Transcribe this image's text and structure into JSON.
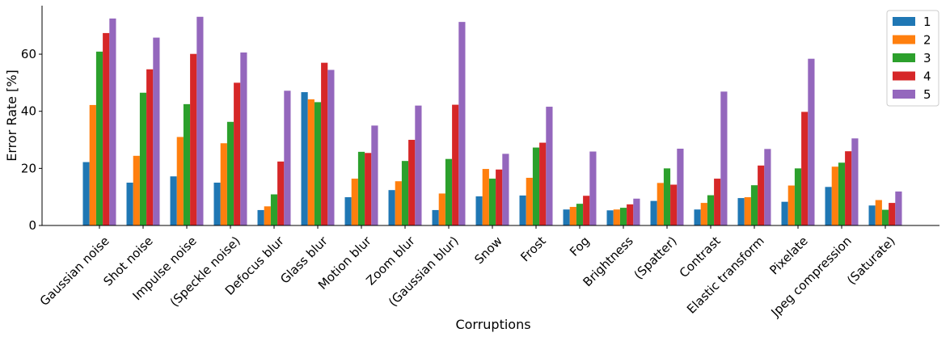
{
  "chart_data": {
    "type": "bar",
    "title": "",
    "xlabel": "Corruptions",
    "ylabel": "Error Rate [%]",
    "ylim": [
      0,
      77
    ],
    "yticks": [
      0,
      20,
      40,
      60
    ],
    "grid": false,
    "legend_position": "top-right",
    "categories": [
      "Gaussian noise",
      "Shot noise",
      "Impulse noise",
      "(Speckle noise)",
      "Defocus blur",
      "Glass blur",
      "Motion blur",
      "Zoom blur",
      "(Gaussian blur)",
      "Snow",
      "Frost",
      "Fog",
      "Brightness",
      "(Spatter)",
      "Contrast",
      "Elastic transform",
      "Pixelate",
      "Jpeg compression",
      "(Saturate)"
    ],
    "series": [
      {
        "name": "1",
        "color": "#1f77b4",
        "values": [
          22.2,
          15.0,
          17.2,
          15.0,
          5.4,
          46.7,
          9.9,
          12.4,
          5.4,
          10.2,
          10.5,
          5.6,
          5.3,
          8.6,
          5.6,
          9.6,
          8.3,
          13.5,
          7.0
        ]
      },
      {
        "name": "2",
        "color": "#ff7f0e",
        "values": [
          42.2,
          24.4,
          31.0,
          28.8,
          6.7,
          44.2,
          16.4,
          15.5,
          11.2,
          19.8,
          16.7,
          6.5,
          5.6,
          14.9,
          7.9,
          9.9,
          14.0,
          20.6,
          8.9
        ]
      },
      {
        "name": "3",
        "color": "#2ca02c",
        "values": [
          60.9,
          46.5,
          42.5,
          36.3,
          10.9,
          43.2,
          25.8,
          22.6,
          23.3,
          16.4,
          27.3,
          7.6,
          6.2,
          20.0,
          10.6,
          14.1,
          20.0,
          22.0,
          5.5
        ]
      },
      {
        "name": "4",
        "color": "#d62728",
        "values": [
          67.4,
          54.7,
          60.1,
          50.0,
          22.4,
          57.0,
          25.4,
          30.0,
          42.3,
          19.6,
          29.0,
          10.4,
          7.4,
          14.3,
          16.4,
          21.0,
          39.8,
          26.0,
          7.9
        ]
      },
      {
        "name": "5",
        "color": "#9467bd",
        "values": [
          72.5,
          65.8,
          73.1,
          60.6,
          47.2,
          54.5,
          35.0,
          42.0,
          71.3,
          25.1,
          41.6,
          25.9,
          9.4,
          26.9,
          46.9,
          26.8,
          58.4,
          30.5,
          11.9
        ]
      }
    ]
  }
}
